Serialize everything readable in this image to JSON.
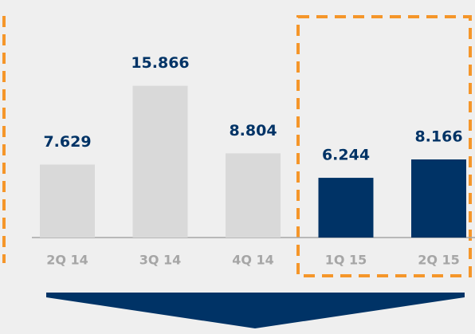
{
  "chart_data": {
    "type": "bar",
    "categories": [
      "2Q 14",
      "3Q 14",
      "4Q 14",
      "1Q 15",
      "2Q 15"
    ],
    "values": [
      7.629,
      15.866,
      8.804,
      6.244,
      8.166
    ],
    "colors": [
      "#d9d9d9",
      "#d9d9d9",
      "#d9d9d9",
      "#003366",
      "#003366"
    ]
  }
}
